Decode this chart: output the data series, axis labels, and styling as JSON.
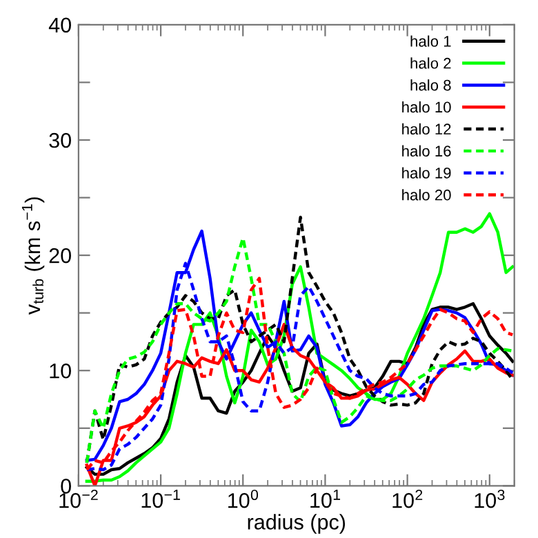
{
  "chart_data": {
    "type": "line",
    "xlabel": "radius (pc)",
    "ylabel": "v$_{turb}$ (km s$^{−1}$)",
    "log": "x",
    "xlim": [
      0.01,
      2000
    ],
    "xticks": [
      {
        "value": 0.01,
        "label": "10$^{−2}$"
      },
      {
        "value": 0.1,
        "label": "10$^{−1}$"
      },
      {
        "value": 1,
        "label": "10$^{0}$"
      },
      {
        "value": 10,
        "label": "10$^{1}$"
      },
      {
        "value": 100,
        "label": "10$^{2}$"
      },
      {
        "value": 1000,
        "label": "10$^{3}$"
      }
    ],
    "ylim": [
      0,
      40
    ],
    "yticks": [
      0,
      {
        "value": 5,
        "label": null
      },
      10,
      {
        "value": 15,
        "label": null
      },
      20,
      {
        "value": 25,
        "label": null
      },
      30,
      {
        "value": 35,
        "label": null
      },
      40
    ],
    "grid": false,
    "legend": "top right",
    "marker": "none",
    "x": [
      0.0126,
      0.0158,
      0.02,
      0.0251,
      0.0316,
      0.0398,
      0.0501,
      0.0631,
      0.0794,
      0.1,
      0.126,
      0.158,
      0.2,
      0.251,
      0.316,
      0.398,
      0.501,
      0.631,
      0.794,
      1,
      1.26,
      1.58,
      2,
      2.51,
      3.16,
      3.98,
      5.01,
      6.31,
      7.94,
      10,
      12.6,
      15.8,
      20,
      25.1,
      31.6,
      39.8,
      50.1,
      63.1,
      79.4,
      100,
      126,
      158,
      200,
      251,
      316,
      398,
      501,
      631,
      794,
      1000,
      1259,
      1585,
      1905
    ],
    "series": [
      {
        "name": "halo 1",
        "color": "#000000",
        "line_style": "solid",
        "values": [
          1.6,
          1.0,
          1.0,
          1.4,
          1.5,
          2.0,
          2.4,
          2.8,
          3.3,
          4.1,
          5.8,
          9.0,
          11.3,
          10.3,
          7.6,
          7.6,
          6.5,
          6.3,
          8.2,
          9.0,
          10.0,
          11.5,
          13.0,
          12.0,
          10.0,
          8.2,
          8.5,
          11.5,
          12.3,
          9.0,
          8.3,
          8.0,
          7.8,
          8.0,
          8.3,
          8.5,
          9.5,
          10.8,
          10.8,
          10.6,
          12.0,
          14.0,
          15.3,
          15.5,
          15.5,
          15.3,
          15.5,
          15.8,
          14.5,
          13.0,
          12.2,
          11.5,
          10.8
        ]
      },
      {
        "name": "halo 2",
        "color": "#00ff00",
        "line_style": "solid",
        "values": [
          0.4,
          0.4,
          0.5,
          0.5,
          0.8,
          1.3,
          2.0,
          2.6,
          3.2,
          3.8,
          5.0,
          8.0,
          11.5,
          14.0,
          14.0,
          15.0,
          13.0,
          9.5,
          7.2,
          9.5,
          13.5,
          12.5,
          10.5,
          11.0,
          13.0,
          17.5,
          19.0,
          15.5,
          11.5,
          11.0,
          10.5,
          10.0,
          9.3,
          8.5,
          8.0,
          7.5,
          7.5,
          8.0,
          9.5,
          11.5,
          13.0,
          14.5,
          16.5,
          18.5,
          22.0,
          22.0,
          22.3,
          22.0,
          22.5,
          23.6,
          22.0,
          18.5,
          19.0
        ]
      },
      {
        "name": "halo 8",
        "color": "#0000ff",
        "line_style": "solid",
        "values": [
          2.2,
          2.3,
          3.5,
          5.0,
          7.3,
          7.5,
          8.0,
          8.8,
          10.0,
          11.5,
          15.0,
          18.5,
          18.5,
          20.5,
          22.1,
          18.0,
          12.5,
          11.0,
          12.5,
          14.0,
          15.0,
          13.5,
          12.0,
          12.5,
          16.0,
          11.7,
          11.8,
          13.0,
          12.0,
          8.8,
          7.2,
          5.2,
          5.3,
          6.0,
          7.2,
          8.0,
          8.6,
          9.0,
          9.3,
          10.5,
          11.8,
          13.5,
          15.2,
          15.3,
          15.2,
          15.0,
          14.6,
          13.5,
          12.3,
          10.6,
          10.5,
          10.0,
          9.6
        ]
      },
      {
        "name": "halo 10",
        "color": "#ff0000",
        "line_style": "solid",
        "values": [
          1.8,
          0.0,
          2.2,
          2.2,
          5.0,
          5.2,
          5.5,
          6.0,
          7.0,
          7.8,
          10.0,
          10.8,
          10.6,
          10.3,
          11.1,
          10.8,
          10.6,
          11.8,
          10.0,
          10.0,
          9.2,
          9.0,
          10.2,
          12.0,
          14.0,
          12.0,
          11.3,
          11.0,
          10.0,
          9.0,
          8.5,
          7.6,
          7.6,
          7.8,
          8.3,
          8.4,
          8.8,
          9.2,
          9.4,
          8.8,
          8.0,
          7.4,
          9.0,
          9.8,
          10.5,
          11.0,
          11.7,
          10.8,
          10.8,
          11.0,
          10.2,
          9.8,
          9.6
        ]
      },
      {
        "name": "halo 12",
        "color": "#000000",
        "line_style": "dashed",
        "values": [
          2.0,
          6.5,
          4.0,
          7.0,
          10.5,
          10.3,
          10.5,
          11.0,
          13.0,
          14.2,
          15.0,
          15.5,
          16.5,
          16.0,
          15.0,
          14.5,
          14.5,
          16.5,
          17.0,
          14.0,
          12.5,
          13.0,
          13.5,
          14.0,
          12.5,
          18.0,
          23.3,
          18.5,
          17.3,
          16.0,
          15.0,
          13.3,
          11.0,
          10.0,
          8.6,
          7.8,
          7.3,
          7.0,
          7.1,
          7.0,
          7.2,
          8.0,
          10.6,
          11.8,
          12.5,
          12.2,
          12.3,
          12.8,
          12.5,
          11.5,
          10.8,
          10.0,
          9.2
        ]
      },
      {
        "name": "halo 16",
        "color": "#00ff00",
        "line_style": "dashed",
        "values": [
          2.0,
          6.5,
          5.0,
          8.0,
          10.0,
          11.0,
          11.2,
          11.6,
          12.5,
          14.0,
          15.0,
          15.8,
          15.8,
          15.0,
          14.5,
          14.3,
          15.0,
          16.0,
          19.0,
          21.5,
          18.0,
          14.0,
          14.0,
          12.5,
          11.5,
          8.0,
          7.3,
          9.5,
          10.3,
          10.0,
          7.5,
          5.5,
          6.0,
          6.8,
          7.8,
          7.5,
          7.4,
          7.4,
          7.8,
          8.4,
          9.2,
          9.6,
          10.2,
          10.4,
          10.4,
          10.4,
          10.2,
          10.0,
          10.5,
          11.3,
          11.9,
          11.8,
          11.7
        ]
      },
      {
        "name": "halo 19",
        "color": "#0000ff",
        "line_style": "dashed",
        "values": [
          1.4,
          1.5,
          1.4,
          1.8,
          3.2,
          3.6,
          4.2,
          5.0,
          5.8,
          7.0,
          11.0,
          17.0,
          19.3,
          17.0,
          14.5,
          12.5,
          12.5,
          13.0,
          10.5,
          7.3,
          6.5,
          6.5,
          9.0,
          12.5,
          11.5,
          12.0,
          16.5,
          17.3,
          16.0,
          14.5,
          13.0,
          11.5,
          10.0,
          9.5,
          9.3,
          8.5,
          8.0,
          7.8,
          7.8,
          7.8,
          8.0,
          8.8,
          9.0,
          10.0,
          10.4,
          10.5,
          10.6,
          10.6,
          10.6,
          10.6,
          10.6,
          10.2,
          9.8
        ]
      },
      {
        "name": "halo 20",
        "color": "#ff0000",
        "line_style": "dashed",
        "values": [
          1.4,
          2.2,
          2.0,
          3.0,
          3.8,
          4.8,
          5.6,
          6.4,
          7.4,
          8.0,
          11.5,
          15.2,
          15.3,
          13.0,
          9.5,
          9.5,
          13.0,
          15.0,
          13.5,
          13.3,
          17.0,
          18.0,
          12.0,
          8.0,
          6.8,
          7.0,
          7.5,
          8.5,
          10.2,
          9.0,
          8.0,
          7.8,
          7.6,
          8.0,
          8.5,
          8.8,
          9.0,
          9.4,
          10.0,
          10.6,
          11.8,
          13.0,
          14.3,
          15.3,
          15.0,
          14.5,
          14.3,
          13.3,
          14.5,
          15.1,
          14.5,
          13.3,
          13.1
        ]
      }
    ]
  }
}
